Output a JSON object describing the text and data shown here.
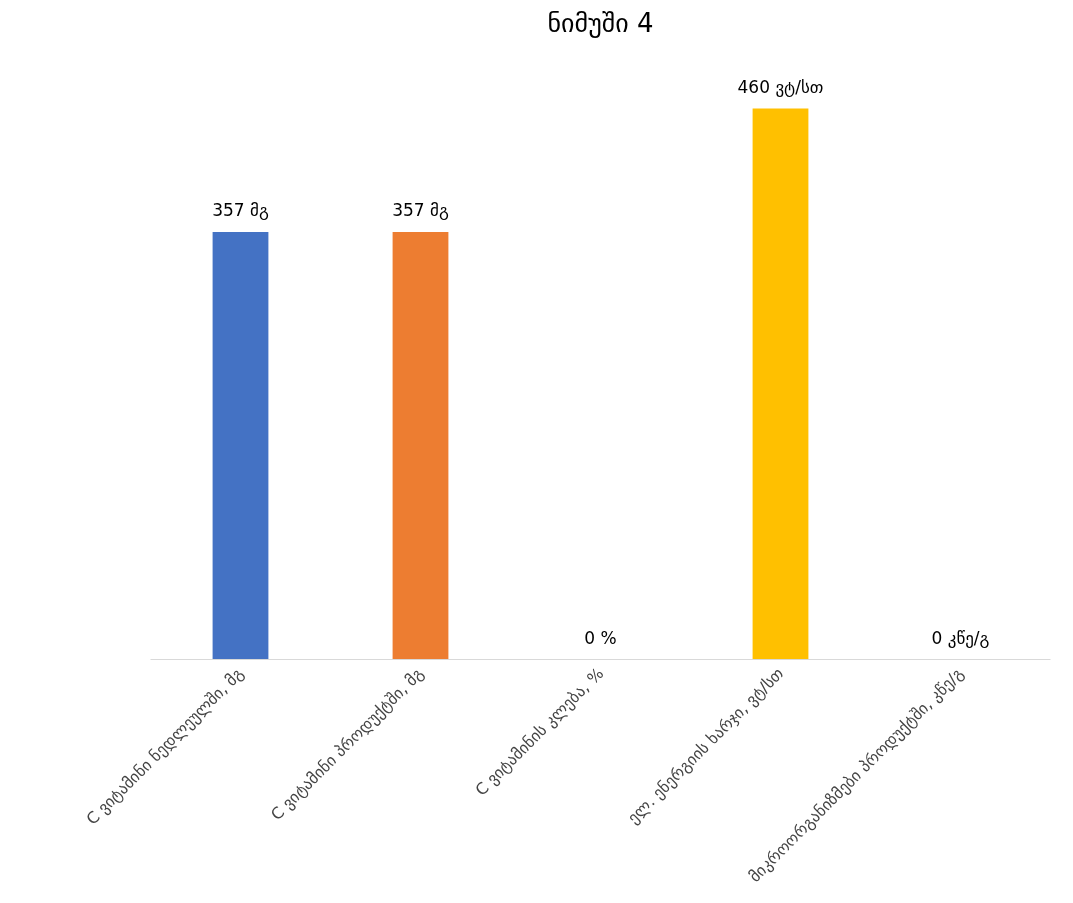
{
  "chart_data": {
    "type": "bar",
    "title": "ნიმუში 4",
    "categories": [
      "C ვიტამინი ნედლეულში, მგ",
      "C ვიტამინი პროდუქტში, მგ",
      "C ვიტამინის კლება, %",
      "ელ. ენერგიის ხარჯი, ვტ/სთ",
      "მიკროორგანიზმები პროდუქტში, კწე/გ"
    ],
    "values": [
      357,
      357,
      0,
      460,
      0
    ],
    "colors": [
      "#4472c4",
      "#ed7d31",
      "#a5a5a5",
      "#ffc000",
      "#5b9bd5"
    ],
    "value_labels": [
      "357 მგ",
      "357 მგ",
      "0 %",
      "460 ვტ/სთ",
      "0 კწე/გ"
    ],
    "grid": false
  }
}
